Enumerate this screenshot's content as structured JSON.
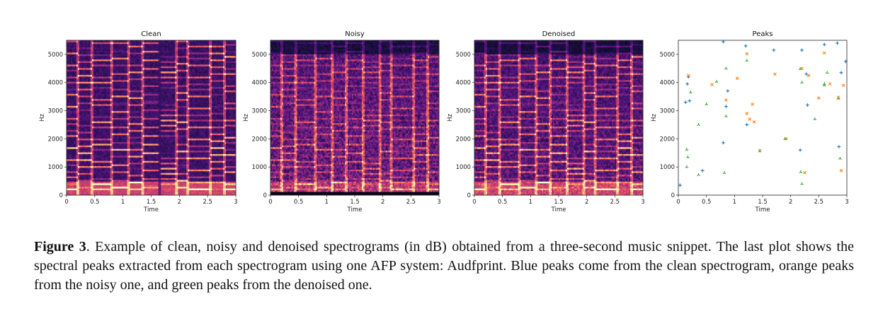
{
  "figure_label": "Figure 3",
  "caption_text": ". Example of clean, noisy and denoised spectrograms (in dB) obtained from a three-second music snippet. The last plot shows the spectral peaks extracted from each spectrogram using one AFP system: Audfprint. Blue peaks come from the clean spectrogram, orange peaks from the noisy one, and green peaks from the denoised one.",
  "colors": {
    "blue": "#1f77b4",
    "orange": "#ff7f0e",
    "green": "#2ca02c"
  },
  "chart_data": [
    {
      "type": "heatmap",
      "title": "Clean",
      "xlabel": "Time",
      "ylabel": "Hz",
      "xlim": [
        0,
        3
      ],
      "ylim": [
        0,
        5500
      ],
      "xticks": [
        "0",
        "0.5",
        "1",
        "1.5",
        "2",
        "2.5",
        "3"
      ],
      "xtick_values": [
        0,
        0.5,
        1,
        1.5,
        2,
        2.5,
        3
      ],
      "yticks": [
        "0",
        "1000",
        "2000",
        "3000",
        "4000",
        "5000"
      ],
      "ytick_values": [
        0,
        1000,
        2000,
        3000,
        4000,
        5000
      ],
      "colormap": "magma",
      "noise": 0.15,
      "harmonic": 1.0,
      "top_gap": false,
      "bottom_band": false
    },
    {
      "type": "heatmap",
      "title": "Noisy",
      "xlabel": "Time",
      "ylabel": "Hz",
      "xlim": [
        0,
        3
      ],
      "ylim": [
        0,
        5500
      ],
      "xticks": [
        "0",
        "0.5",
        "1",
        "1.5",
        "2",
        "2.5",
        "3"
      ],
      "xtick_values": [
        0,
        0.5,
        1,
        1.5,
        2,
        2.5,
        3
      ],
      "yticks": [
        "0",
        "1000",
        "2000",
        "3000",
        "4000",
        "5000"
      ],
      "ytick_values": [
        0,
        1000,
        2000,
        3000,
        4000,
        5000
      ],
      "colormap": "magma",
      "noise": 0.55,
      "harmonic": 0.55,
      "top_gap": true,
      "bottom_band": true
    },
    {
      "type": "heatmap",
      "title": "Denoised",
      "xlabel": "Time",
      "ylabel": "Hz",
      "xlim": [
        0,
        3
      ],
      "ylim": [
        0,
        5500
      ],
      "xticks": [
        "0",
        "0.5",
        "1",
        "1.5",
        "2",
        "2.5",
        "3"
      ],
      "xtick_values": [
        0,
        0.5,
        1,
        1.5,
        2,
        2.5,
        3
      ],
      "yticks": [
        "0",
        "1000",
        "2000",
        "3000",
        "4000",
        "5000"
      ],
      "ytick_values": [
        0,
        1000,
        2000,
        3000,
        4000,
        5000
      ],
      "colormap": "magma",
      "noise": 0.38,
      "harmonic": 0.85,
      "top_gap": true,
      "bottom_band": false
    },
    {
      "type": "scatter",
      "title": "Peaks",
      "xlabel": "Time",
      "ylabel": "Hz",
      "xlim": [
        0,
        3
      ],
      "ylim": [
        0,
        5500
      ],
      "xticks": [
        "0",
        "0.5",
        "1",
        "1.5",
        "2",
        "2.5",
        "3"
      ],
      "xtick_values": [
        0,
        0.5,
        1,
        1.5,
        2,
        2.5,
        3
      ],
      "yticks": [
        "0",
        "1000",
        "2000",
        "3000",
        "4000",
        "5000"
      ],
      "ytick_values": [
        0,
        1000,
        2000,
        3000,
        4000,
        5000
      ],
      "grid": false,
      "series": [
        {
          "color": "#1f77b4",
          "marker": "plus",
          "points": [
            [
              0.03,
              350
            ],
            [
              0.13,
              3300
            ],
            [
              0.16,
              3950
            ],
            [
              0.2,
              3350
            ],
            [
              0.18,
              4200
            ],
            [
              0.43,
              870
            ],
            [
              0.8,
              5450
            ],
            [
              0.8,
              1860
            ],
            [
              0.85,
              3150
            ],
            [
              0.88,
              3700
            ],
            [
              1.2,
              5300
            ],
            [
              1.22,
              2500
            ],
            [
              1.7,
              5150
            ],
            [
              2.2,
              5150
            ],
            [
              2.17,
              1600
            ],
            [
              2.28,
              4300
            ],
            [
              2.6,
              5350
            ],
            [
              2.83,
              5400
            ],
            [
              2.86,
              1720
            ],
            [
              2.9,
              4350
            ],
            [
              2.98,
              4750
            ],
            [
              2.3,
              3200
            ]
          ]
        },
        {
          "color": "#ff7f0e",
          "marker": "x",
          "points": [
            [
              0.18,
              4250
            ],
            [
              0.6,
              3930
            ],
            [
              0.85,
              3380
            ],
            [
              1.05,
              4150
            ],
            [
              1.22,
              5020
            ],
            [
              1.22,
              2900
            ],
            [
              1.27,
              2700
            ],
            [
              1.32,
              3230
            ],
            [
              1.35,
              2600
            ],
            [
              1.45,
              1580
            ],
            [
              1.72,
              4300
            ],
            [
              1.92,
              2000
            ],
            [
              2.2,
              4500
            ],
            [
              2.25,
              800
            ],
            [
              2.32,
              4250
            ],
            [
              2.5,
              3450
            ],
            [
              2.6,
              5050
            ],
            [
              2.7,
              3950
            ],
            [
              2.85,
              3480
            ],
            [
              2.9,
              870
            ],
            [
              2.94,
              3900
            ]
          ]
        },
        {
          "color": "#2ca02c",
          "marker": "tri",
          "points": [
            [
              0.15,
              1620
            ],
            [
              0.17,
              1350
            ],
            [
              0.15,
              1000
            ],
            [
              0.22,
              3650
            ],
            [
              0.36,
              2500
            ],
            [
              0.36,
              720
            ],
            [
              0.5,
              3230
            ],
            [
              0.68,
              4030
            ],
            [
              0.82,
              790
            ],
            [
              0.85,
              4500
            ],
            [
              0.85,
              2800
            ],
            [
              1.22,
              4780
            ],
            [
              1.45,
              1560
            ],
            [
              1.9,
              2000
            ],
            [
              2.17,
              4480
            ],
            [
              2.18,
              820
            ],
            [
              2.2,
              400
            ],
            [
              2.2,
              4000
            ],
            [
              2.43,
              2700
            ],
            [
              2.6,
              3950
            ],
            [
              2.65,
              4350
            ],
            [
              2.85,
              3430
            ],
            [
              2.88,
              1300
            ],
            [
              2.6,
              3900
            ]
          ]
        }
      ]
    }
  ]
}
